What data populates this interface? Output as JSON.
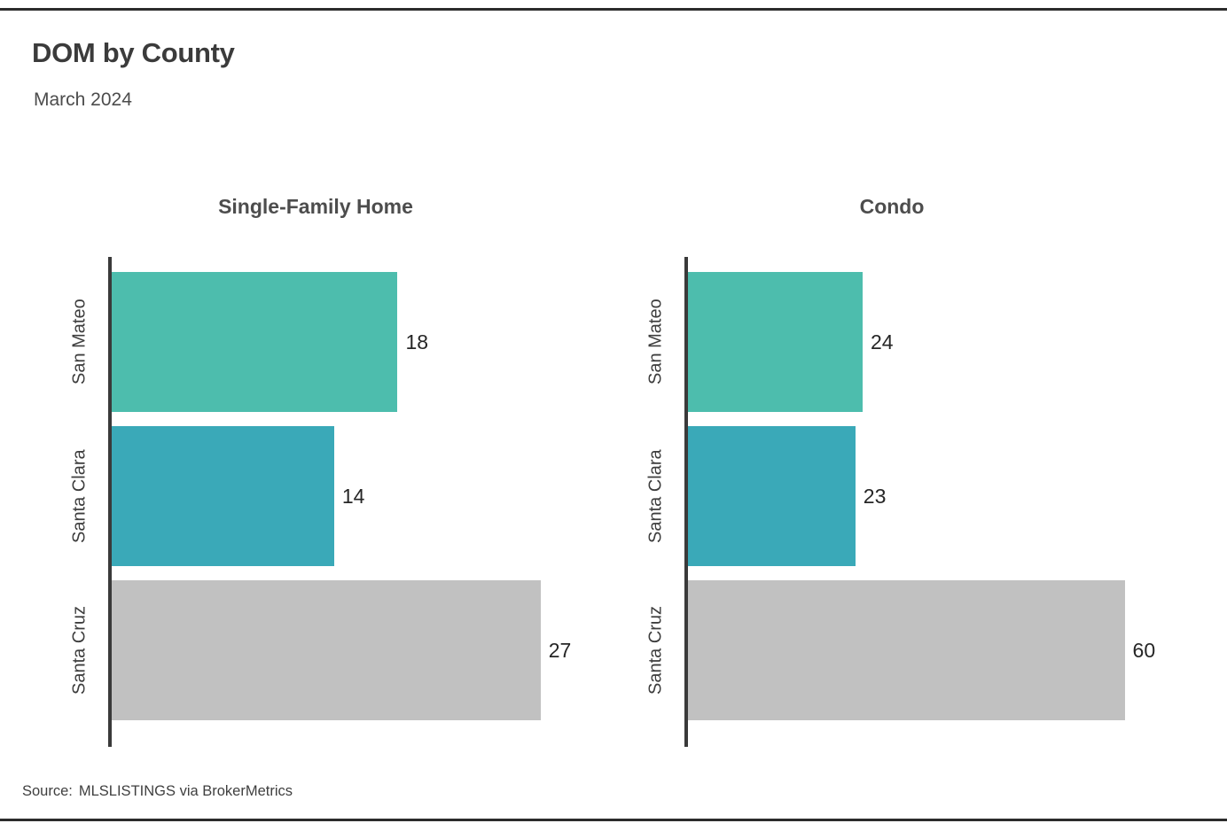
{
  "page": {
    "title": "DOM by County",
    "subtitle": "March 2024"
  },
  "source": {
    "label": "Source:",
    "text": "MLSLISTINGS via BrokerMetrics"
  },
  "colors": {
    "bar_san_mateo": "#4DBDAD",
    "bar_santa_clara": "#3AA9B8",
    "bar_santa_cruz": "#C1C1C1",
    "axis": "#3A3A3A",
    "rule": "#2C2C2C"
  },
  "chart_data": [
    {
      "type": "bar",
      "orientation": "horizontal",
      "title": "Single-Family Home",
      "categories": [
        "San Mateo",
        "Santa Clara",
        "Santa Cruz"
      ],
      "values": [
        18,
        14,
        27
      ],
      "bar_colors": [
        "#4DBDAD",
        "#3AA9B8",
        "#C1C1C1"
      ],
      "xlim": [
        0,
        30.7
      ],
      "value_labels": true,
      "grid": false,
      "legend": false
    },
    {
      "type": "bar",
      "orientation": "horizontal",
      "title": "Condo",
      "categories": [
        "San Mateo",
        "Santa Clara",
        "Santa Cruz"
      ],
      "values": [
        24,
        23,
        60
      ],
      "bar_colors": [
        "#4DBDAD",
        "#3AA9B8",
        "#C1C1C1"
      ],
      "xlim": [
        0,
        67
      ],
      "value_labels": true,
      "grid": false,
      "legend": false
    }
  ]
}
